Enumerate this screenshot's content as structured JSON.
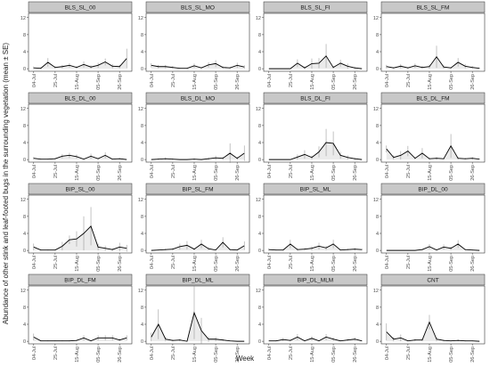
{
  "axis_labels": {
    "x": "Week",
    "y": "Abundance of other stink and leaf-footed bugs in the surrounding vegetation (mean ± SE)"
  },
  "chart_data": [
    {
      "type": "line",
      "title": "BLS_SL_00",
      "color": "#000000",
      "categories": [
        "04-Jul",
        null,
        null,
        "25-Jul",
        null,
        null,
        "15-Aug",
        null,
        null,
        "05-Sep",
        null,
        null,
        "26-Sep",
        null
      ],
      "values": [
        0.2,
        0.1,
        1.5,
        0.3,
        0.5,
        0.8,
        0.3,
        1,
        0.4,
        0.8,
        1.6,
        0.6,
        0.5,
        2.4
      ],
      "errors": [
        0.3,
        0.2,
        1,
        0.3,
        0.4,
        0.5,
        0.3,
        0.7,
        0.4,
        0.6,
        0.8,
        0.5,
        0.4,
        2.3
      ],
      "ylim": [
        -0.6,
        13
      ],
      "yticks": [
        0,
        4,
        8,
        12
      ]
    },
    {
      "type": "line",
      "title": "BLS_SL_MO",
      "color": "#000000",
      "categories": [
        "04-Jul",
        null,
        null,
        "25-Jul",
        null,
        null,
        "15-Aug",
        null,
        null,
        "05-Sep",
        null,
        null,
        "26-Sep",
        null
      ],
      "values": [
        0.8,
        0.5,
        0.5,
        0.3,
        0.1,
        0.1,
        0.7,
        0.2,
        0.9,
        1.2,
        0.3,
        0.2,
        0.8,
        0.4
      ],
      "errors": [
        0.5,
        0.4,
        0.4,
        0.3,
        0.1,
        0.1,
        0.5,
        0.2,
        0.6,
        0.8,
        0.3,
        0.2,
        0.6,
        0.4
      ],
      "ylim": [
        -0.6,
        13
      ],
      "yticks": [
        0,
        4,
        8,
        12
      ]
    },
    {
      "type": "line",
      "title": "BLS_SL_FI",
      "color": "#000000",
      "categories": [
        "04-Jul",
        null,
        null,
        "25-Jul",
        null,
        null,
        "15-Aug",
        null,
        null,
        "05-Sep",
        null,
        null,
        "26-Sep",
        null
      ],
      "values": [
        0,
        0,
        0,
        0,
        1.3,
        0.2,
        1.2,
        1.3,
        3,
        0.3,
        1.3,
        0.6,
        0.2,
        0
      ],
      "errors": [
        0,
        0,
        0,
        0,
        0.9,
        0.3,
        1.2,
        1.2,
        2.8,
        0.3,
        0.8,
        0.6,
        0.3,
        0
      ],
      "ylim": [
        -0.6,
        13
      ],
      "yticks": [
        0,
        4,
        8,
        12
      ]
    },
    {
      "type": "line",
      "title": "BLS_SL_FM",
      "color": "#000000",
      "categories": [
        "04-Jul",
        null,
        null,
        "25-Jul",
        null,
        null,
        "15-Aug",
        null,
        null,
        "05-Sep",
        null,
        null,
        "26-Sep",
        null
      ],
      "values": [
        0.5,
        0.2,
        0.6,
        0.2,
        0.7,
        0.3,
        0.5,
        2.8,
        0.4,
        0.2,
        1.5,
        0.6,
        0.3,
        0.1
      ],
      "errors": [
        0.4,
        0.2,
        0.5,
        0.2,
        0.5,
        0.3,
        0.5,
        2.6,
        0.4,
        0.2,
        1,
        0.5,
        0.3,
        0.1
      ],
      "ylim": [
        -0.6,
        13
      ],
      "yticks": [
        0,
        4,
        8,
        12
      ]
    },
    {
      "type": "line",
      "title": "BLS_DL_00",
      "color": "#000000",
      "categories": [
        "04-Jul",
        null,
        null,
        "25-Jul",
        null,
        null,
        "15-Aug",
        null,
        null,
        "05-Sep",
        null,
        null,
        "26-Sep",
        null
      ],
      "values": [
        0.3,
        0.1,
        0.1,
        0.2,
        0.8,
        1,
        0.7,
        0.1,
        0.8,
        0.2,
        1,
        0.1,
        0.2,
        0
      ],
      "errors": [
        0.3,
        0.1,
        0.1,
        0.2,
        0.5,
        0.6,
        0.5,
        0.1,
        0.6,
        0.2,
        0.7,
        0.1,
        0.2,
        0
      ],
      "ylim": [
        -0.6,
        13
      ],
      "yticks": [
        0,
        4,
        8,
        12
      ]
    },
    {
      "type": "line",
      "title": "BLS_DL_MO",
      "color": "#000000",
      "categories": [
        "04-Jul",
        null,
        null,
        "25-Jul",
        null,
        null,
        "15-Aug",
        null,
        null,
        "05-Sep",
        null,
        null,
        "26-Sep",
        null
      ],
      "values": [
        0,
        0.1,
        0.2,
        0.1,
        0,
        0,
        0.1,
        0,
        0.2,
        0.4,
        0.3,
        1.5,
        0.3,
        1.5
      ],
      "errors": [
        0,
        0.2,
        0.3,
        0.2,
        0,
        0,
        0.2,
        0,
        0.3,
        0.5,
        0.4,
        2.3,
        0.4,
        1.8
      ],
      "ylim": [
        -0.6,
        13
      ],
      "yticks": [
        0,
        4,
        8,
        12
      ]
    },
    {
      "type": "line",
      "title": "BLS_DL_FI",
      "color": "#000000",
      "categories": [
        "04-Jul",
        null,
        null,
        "25-Jul",
        null,
        null,
        "15-Aug",
        null,
        null,
        "05-Sep",
        null,
        null,
        "26-Sep",
        null
      ],
      "values": [
        0,
        0,
        0,
        0,
        0.6,
        1.2,
        0.5,
        1.8,
        4,
        3.8,
        1,
        0.5,
        0.2,
        0
      ],
      "errors": [
        0,
        0,
        0,
        0,
        0.6,
        1,
        0.5,
        1.3,
        3.2,
        2.8,
        0.8,
        0.5,
        0.3,
        0
      ],
      "ylim": [
        -0.6,
        13
      ],
      "yticks": [
        0,
        4,
        8,
        12
      ]
    },
    {
      "type": "line",
      "title": "BLS_DL_FM",
      "color": "#000000",
      "categories": [
        "04-Jul",
        null,
        null,
        "25-Jul",
        null,
        null,
        "15-Aug",
        null,
        null,
        "05-Sep",
        null,
        null,
        "26-Sep",
        null
      ],
      "values": [
        2.5,
        0.5,
        1,
        2,
        0.3,
        1.5,
        0.2,
        0.3,
        0.2,
        3.2,
        0.3,
        0.2,
        0.3,
        0.1
      ],
      "errors": [
        0.8,
        0.5,
        1,
        1.2,
        0.3,
        1.2,
        0.3,
        0.3,
        0.2,
        2.8,
        0.3,
        0.2,
        0.3,
        0.1
      ],
      "ylim": [
        -0.6,
        13
      ],
      "yticks": [
        0,
        4,
        8,
        12
      ]
    },
    {
      "type": "line",
      "title": "BIP_SL_00",
      "color": "#000000",
      "categories": [
        "04-Jul",
        null,
        null,
        "25-Jul",
        null,
        null,
        "15-Aug",
        null,
        null,
        "05-Sep",
        null,
        null,
        "26-Sep",
        null
      ],
      "values": [
        0.8,
        0.1,
        0.1,
        0.1,
        1,
        2.5,
        2.7,
        4,
        5.7,
        0.8,
        0.5,
        0.2,
        0.8,
        0.5
      ],
      "errors": [
        0.8,
        0.1,
        0.1,
        0.1,
        1,
        1,
        1.8,
        4,
        4.5,
        0.8,
        0.6,
        0.3,
        1,
        0.8
      ],
      "ylim": [
        -0.6,
        13
      ],
      "yticks": [
        0,
        4,
        8,
        12
      ]
    },
    {
      "type": "line",
      "title": "BIP_SL_FM",
      "color": "#000000",
      "categories": [
        "04-Jul",
        null,
        null,
        "25-Jul",
        null,
        null,
        "15-Aug",
        null,
        null,
        "05-Sep",
        null,
        null,
        "26-Sep",
        null
      ],
      "values": [
        0,
        0.1,
        0.2,
        0.3,
        0.9,
        1.2,
        0.3,
        1.5,
        0.4,
        0.1,
        1.9,
        0.2,
        0.1,
        1.1
      ],
      "errors": [
        0,
        0.1,
        0.2,
        0.3,
        0.7,
        1,
        0.3,
        1,
        0.4,
        0.1,
        1.2,
        0.2,
        0.1,
        1
      ],
      "ylim": [
        -0.6,
        13
      ],
      "yticks": [
        0,
        4,
        8,
        12
      ]
    },
    {
      "type": "line",
      "title": "BIP_SL_ML",
      "color": "#000000",
      "categories": [
        "04-Jul",
        null,
        null,
        "25-Jul",
        null,
        null,
        "15-Aug",
        null,
        null,
        "05-Sep",
        null,
        null,
        "26-Sep",
        null
      ],
      "values": [
        0.2,
        0.1,
        0.1,
        1.5,
        0.2,
        0.3,
        0.5,
        1,
        0.6,
        1.5,
        0.1,
        0.2,
        0.3,
        0.2
      ],
      "errors": [
        0.3,
        0.1,
        0.1,
        1,
        0.3,
        0.3,
        0.5,
        0.8,
        0.5,
        1,
        0.1,
        0.2,
        0.3,
        0.2
      ],
      "ylim": [
        -0.6,
        13
      ],
      "yticks": [
        0,
        4,
        8,
        12
      ]
    },
    {
      "type": "line",
      "title": "BIP_DL_00",
      "color": "#000000",
      "categories": [
        "04-Jul",
        null,
        null,
        "25-Jul",
        null,
        null,
        "15-Aug",
        null,
        null,
        "05-Sep",
        null,
        null,
        "26-Sep",
        null
      ],
      "values": [
        0,
        0,
        0,
        0,
        0,
        0.2,
        0.9,
        0.1,
        0.8,
        0.5,
        1.5,
        0.2,
        0.1,
        0
      ],
      "errors": [
        0,
        0,
        0,
        0,
        0,
        0.2,
        0.6,
        0.1,
        0.6,
        0.4,
        0.9,
        0.2,
        0.1,
        0
      ],
      "ylim": [
        -0.6,
        13
      ],
      "yticks": [
        0,
        4,
        8,
        12
      ]
    },
    {
      "type": "line",
      "title": "BIP_DL_FM",
      "color": "#000000",
      "categories": [
        "04-Jul",
        null,
        null,
        "25-Jul",
        null,
        null,
        "15-Aug",
        null,
        null,
        "05-Sep",
        null,
        null,
        "26-Sep",
        null
      ],
      "values": [
        1,
        0.1,
        0.1,
        0.1,
        0.1,
        0.1,
        0.2,
        0.8,
        0.1,
        0.8,
        0.8,
        0.8,
        0.3,
        0.8
      ],
      "errors": [
        0.8,
        0.1,
        0.1,
        0.1,
        0.1,
        0.1,
        0.2,
        0.6,
        0.1,
        0.6,
        0.6,
        0.6,
        0.3,
        0.6
      ],
      "ylim": [
        -0.6,
        13
      ],
      "yticks": [
        0,
        4,
        8,
        12
      ]
    },
    {
      "type": "line",
      "title": "BIP_DL_ML",
      "color": "#000000",
      "categories": [
        "04-Jul",
        null,
        null,
        "25-Jul",
        null,
        null,
        "15-Aug",
        null,
        null,
        "05-Sep",
        null,
        null,
        "26-Sep",
        null
      ],
      "values": [
        1,
        4,
        0.5,
        0.2,
        0.3,
        0,
        6.7,
        2.5,
        0.5,
        0.5,
        0.3,
        0.1,
        0,
        0
      ],
      "errors": [
        1,
        3.5,
        0.5,
        0.2,
        0.3,
        0,
        6.2,
        3,
        0.6,
        0.5,
        0.3,
        0.1,
        0,
        0
      ],
      "ylim": [
        -0.6,
        13
      ],
      "yticks": [
        0,
        4,
        8,
        12
      ]
    },
    {
      "type": "line",
      "title": "BIP_DL_MLM",
      "color": "#000000",
      "categories": [
        "04-Jul",
        null,
        null,
        "25-Jul",
        null,
        null,
        "15-Aug",
        null,
        null,
        "05-Sep",
        null,
        null,
        "26-Sep",
        null
      ],
      "values": [
        0.1,
        0.1,
        0.4,
        0.2,
        1,
        0.1,
        0.7,
        0.1,
        1,
        0.5,
        0.1,
        0.3,
        0.5,
        0.1
      ],
      "errors": [
        0.1,
        0.1,
        0.4,
        0.2,
        0.7,
        0.1,
        0.5,
        0.1,
        0.7,
        0.4,
        0.1,
        0.3,
        0.4,
        0.1
      ],
      "ylim": [
        -0.6,
        13
      ],
      "yticks": [
        0,
        4,
        8,
        12
      ]
    },
    {
      "type": "line",
      "title": "CNT",
      "color": "#000000",
      "categories": [
        "04-Jul",
        null,
        null,
        "25-Jul",
        null,
        null,
        "15-Aug",
        null,
        null,
        "05-Sep",
        null,
        null,
        "26-Sep",
        null
      ],
      "values": [
        2.2,
        0.5,
        0.8,
        0.1,
        0.3,
        0.3,
        4.5,
        0.5,
        0.2,
        0.1,
        0.2,
        0.1,
        0.1,
        0
      ],
      "errors": [
        2,
        0.5,
        0.8,
        0.1,
        0.3,
        0.3,
        1.7,
        0.5,
        0.2,
        0.1,
        0.2,
        0.1,
        0.1,
        0
      ],
      "ylim": [
        -0.6,
        13
      ],
      "yticks": [
        0,
        4,
        8,
        12
      ]
    }
  ]
}
